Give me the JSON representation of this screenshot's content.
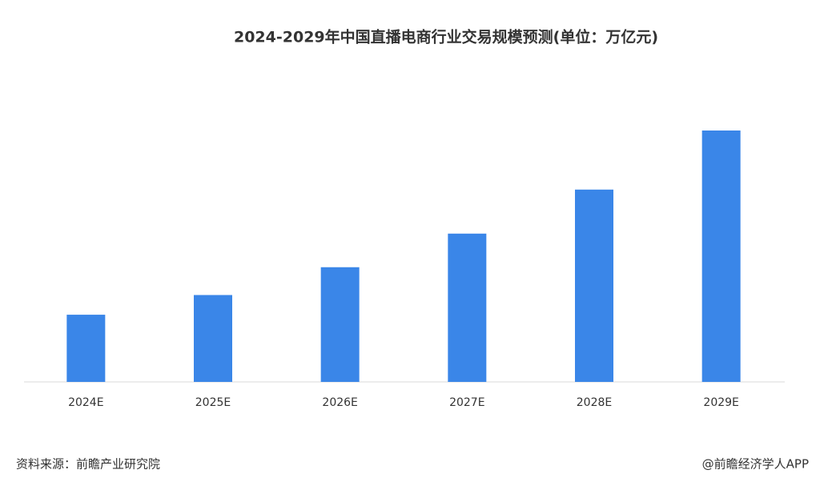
{
  "chart_data": {
    "type": "bar",
    "title": "2024-2029年中国直播电商行业交易规模预测(单位：万亿元)",
    "categories": [
      "2024E",
      "2025E",
      "2026E",
      "2027E",
      "2028E",
      "2029E"
    ],
    "values": [
      5.8,
      7.5,
      9.9,
      12.8,
      16.6,
      21.7
    ],
    "color": "#3a86e8"
  },
  "footer": {
    "source": "资料来源：前瞻产业研究院",
    "credit": "@前瞻经济学人APP"
  }
}
